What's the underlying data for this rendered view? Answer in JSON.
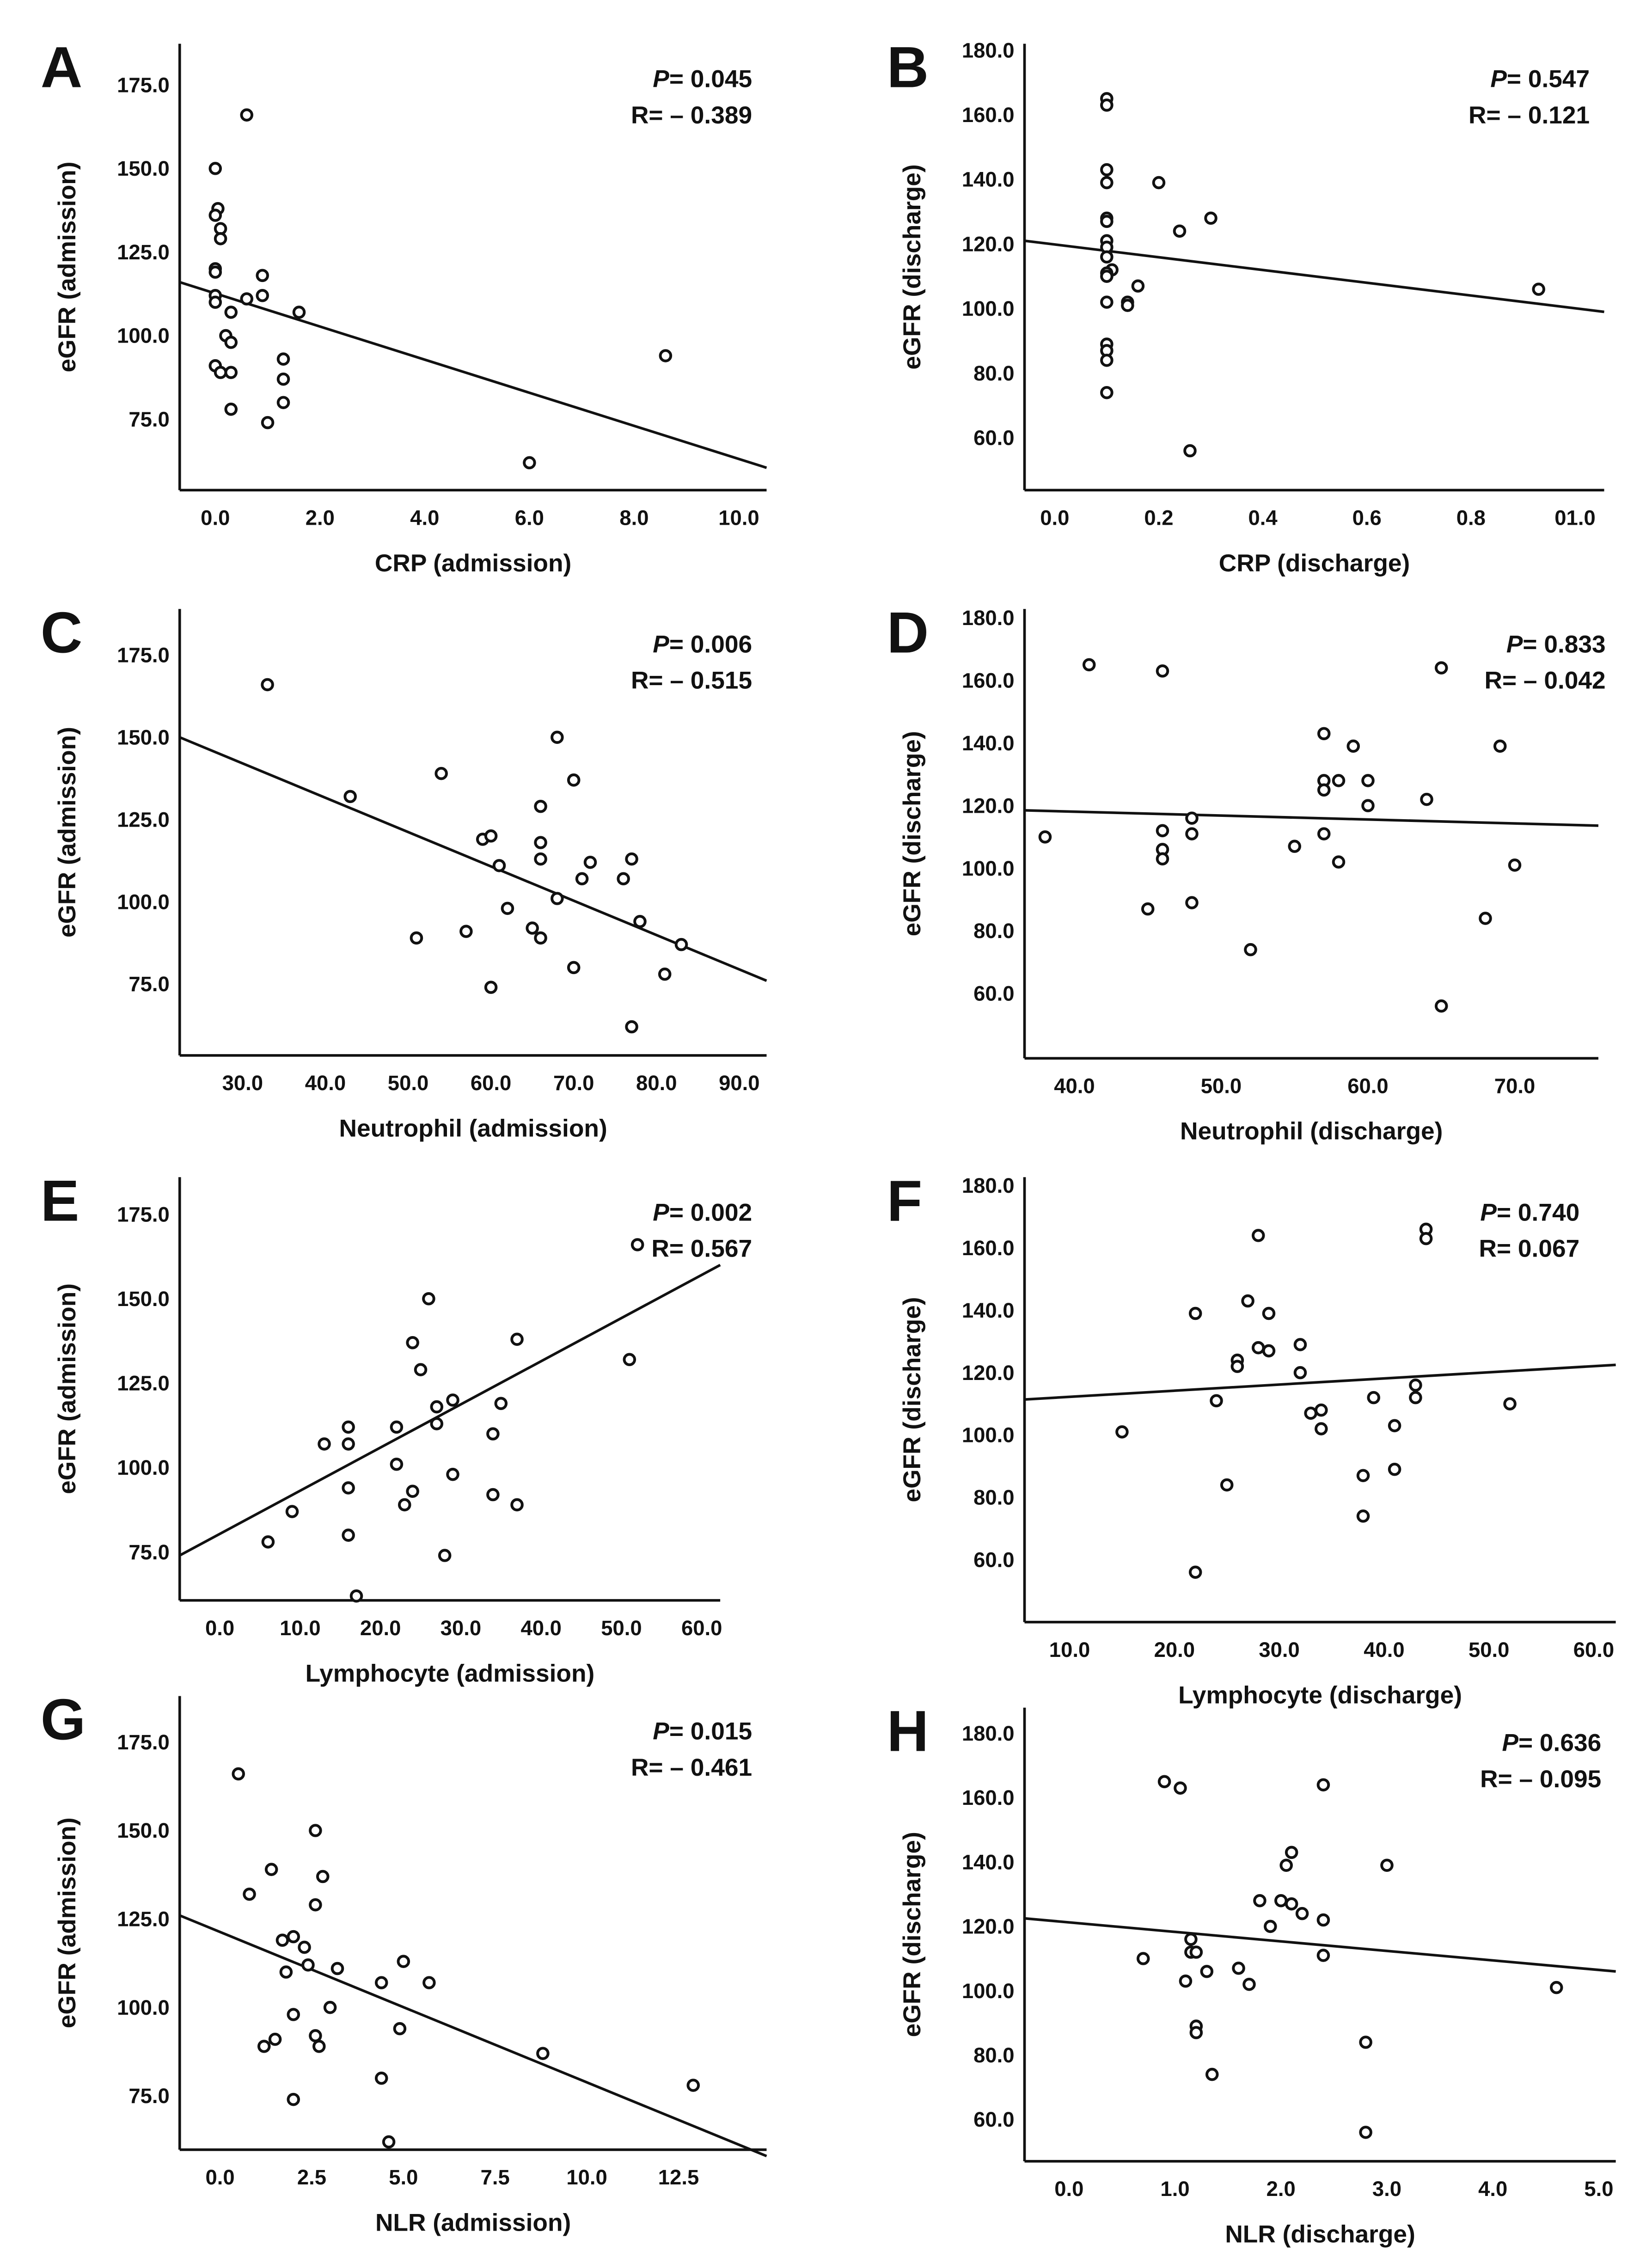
{
  "chart_data": [
    {
      "type": "scatter",
      "panel": "A",
      "xlabel": "CRP (admission)",
      "ylabel": "eGFR (admission)",
      "xlim": [
        -0.68,
        10.53
      ],
      "ylim": [
        53.8,
        187.3
      ],
      "xticks": [
        "0.0",
        "2.0",
        "4.0",
        "6.0",
        "8.0",
        "10.0"
      ],
      "yticks": [
        "75.0",
        "100.0",
        "125.0",
        "150.0",
        "175.0"
      ],
      "p_prefix": "P",
      "p_value": "= 0.045",
      "r_text": "R= – 0.389",
      "fit": {
        "x": [
          -0.68,
          10.53
        ],
        "y": [
          116,
          60.5
        ]
      },
      "points": [
        [
          0.6,
          166
        ],
        [
          0,
          150
        ],
        [
          0.05,
          138
        ],
        [
          0,
          136
        ],
        [
          0.1,
          132
        ],
        [
          0.1,
          129
        ],
        [
          0,
          120
        ],
        [
          0,
          119
        ],
        [
          0.9,
          118
        ],
        [
          0.9,
          112
        ],
        [
          0.6,
          111
        ],
        [
          0,
          112
        ],
        [
          0,
          110
        ],
        [
          0.3,
          107
        ],
        [
          1.6,
          107
        ],
        [
          0.2,
          100
        ],
        [
          0.3,
          98
        ],
        [
          1.3,
          93
        ],
        [
          0,
          91
        ],
        [
          0.1,
          89
        ],
        [
          0.3,
          89
        ],
        [
          1.3,
          87
        ],
        [
          1.3,
          80
        ],
        [
          0.3,
          78
        ],
        [
          1.0,
          74
        ],
        [
          6.0,
          62
        ],
        [
          8.6,
          94
        ]
      ]
    },
    {
      "type": "scatter",
      "panel": "B",
      "xlabel": "CRP (discharge)",
      "ylabel": "eGFR (discharge)",
      "xlim": [
        -0.058,
        1.056
      ],
      "ylim": [
        43.8,
        182
      ],
      "xticks": [
        "0.0",
        "0.2",
        "0.4",
        "0.6",
        "0.8",
        "01.0"
      ],
      "yticks": [
        "60.0",
        "80.0",
        "100.0",
        "120.0",
        "140.0",
        "160.0",
        "180.0"
      ],
      "p_prefix": "P",
      "p_value": "= 0.547",
      "r_text": "R= – 0.121",
      "fit": {
        "x": [
          -0.058,
          1.056
        ],
        "y": [
          121,
          99
        ]
      },
      "points": [
        [
          0.1,
          165
        ],
        [
          0.1,
          163
        ],
        [
          0.1,
          143
        ],
        [
          0.1,
          139
        ],
        [
          0.2,
          139
        ],
        [
          0.1,
          128
        ],
        [
          0.1,
          127
        ],
        [
          0.3,
          128
        ],
        [
          0.24,
          124
        ],
        [
          0.1,
          121
        ],
        [
          0.1,
          119
        ],
        [
          0.1,
          116
        ],
        [
          0.11,
          112
        ],
        [
          0.1,
          111
        ],
        [
          0.1,
          110
        ],
        [
          0.16,
          107
        ],
        [
          0.1,
          102
        ],
        [
          0.14,
          102
        ],
        [
          0.14,
          101
        ],
        [
          0.1,
          89
        ],
        [
          0.1,
          87
        ],
        [
          0.1,
          84
        ],
        [
          0.1,
          74
        ],
        [
          0.26,
          56
        ],
        [
          0.93,
          106
        ]
      ]
    },
    {
      "type": "scatter",
      "panel": "C",
      "xlabel": "Neutrophil (admission)",
      "ylabel": "eGFR (admission)",
      "xlim": [
        22.4,
        93.3
      ],
      "ylim": [
        53.3,
        189
      ],
      "xticks": [
        "30.0",
        "40.0",
        "50.0",
        "60.0",
        "70.0",
        "80.0",
        "90.0"
      ],
      "yticks": [
        "75.0",
        "100.0",
        "125.0",
        "150.0",
        "175.0"
      ],
      "p_prefix": "P",
      "p_value": "= 0.006",
      "r_text": "R= – 0.515",
      "fit": {
        "x": [
          22.4,
          93.3
        ],
        "y": [
          150,
          76
        ]
      },
      "points": [
        [
          33,
          166
        ],
        [
          43,
          132
        ],
        [
          54,
          139
        ],
        [
          68,
          150
        ],
        [
          70,
          137
        ],
        [
          66,
          129
        ],
        [
          59,
          119
        ],
        [
          60,
          120
        ],
        [
          61,
          111
        ],
        [
          66,
          118
        ],
        [
          66,
          113
        ],
        [
          72,
          112
        ],
        [
          77,
          113
        ],
        [
          71,
          107
        ],
        [
          76,
          107
        ],
        [
          68,
          101
        ],
        [
          62,
          98
        ],
        [
          57,
          91
        ],
        [
          51,
          89
        ],
        [
          65,
          92
        ],
        [
          66,
          89
        ],
        [
          78,
          94
        ],
        [
          83,
          87
        ],
        [
          70,
          80
        ],
        [
          81,
          78
        ],
        [
          60,
          74
        ],
        [
          77,
          62
        ]
      ]
    },
    {
      "type": "scatter",
      "panel": "D",
      "xlabel": "Neutrophil (discharge)",
      "ylabel": "eGFR (discharge)",
      "xlim": [
        36.6,
        75.7
      ],
      "ylim": [
        39.3,
        182.8
      ],
      "xticks": [
        "40.0",
        "50.0",
        "60.0",
        "70.0"
      ],
      "yticks": [
        "60.0",
        "80.0",
        "100.0",
        "120.0",
        "140.0",
        "160.0",
        "180.0"
      ],
      "p_prefix": "P",
      "p_value": "= 0.833",
      "r_text": "R= – 0.042",
      "fit": {
        "x": [
          36.6,
          75.7
        ],
        "y": [
          118.5,
          113.6
        ]
      },
      "points": [
        [
          41,
          165
        ],
        [
          46,
          163
        ],
        [
          65,
          164
        ],
        [
          57,
          143
        ],
        [
          59,
          139
        ],
        [
          69,
          139
        ],
        [
          57,
          128
        ],
        [
          58,
          128
        ],
        [
          60,
          128
        ],
        [
          64,
          122
        ],
        [
          60,
          120
        ],
        [
          57,
          125
        ],
        [
          48,
          116
        ],
        [
          46,
          112
        ],
        [
          48,
          111
        ],
        [
          57,
          111
        ],
        [
          38,
          110
        ],
        [
          46,
          106
        ],
        [
          46,
          103
        ],
        [
          55,
          107
        ],
        [
          58,
          102
        ],
        [
          70,
          101
        ],
        [
          45,
          87
        ],
        [
          48,
          89
        ],
        [
          68,
          84
        ],
        [
          52,
          74
        ],
        [
          65,
          56
        ]
      ]
    },
    {
      "type": "scatter",
      "panel": "E",
      "xlabel": "Lymphocyte (admission)",
      "ylabel": "eGFR (admission)",
      "xlim": [
        -5,
        62.3
      ],
      "ylim": [
        60.7,
        186
      ],
      "xticks": [
        "0.0",
        "10.0",
        "20.0",
        "30.0",
        "40.0",
        "50.0",
        "60.0"
      ],
      "yticks": [
        "75.0",
        "100.0",
        "125.0",
        "150.0",
        "175.0"
      ],
      "p_prefix": "P",
      "p_value": "= 0.002",
      "r_text": "R= 0.567",
      "fit": {
        "x": [
          -5,
          62.3
        ],
        "y": [
          74,
          160
        ]
      },
      "points": [
        [
          52,
          166
        ],
        [
          26,
          150
        ],
        [
          24,
          137
        ],
        [
          37,
          138
        ],
        [
          51,
          132
        ],
        [
          25,
          129
        ],
        [
          27,
          118
        ],
        [
          29,
          120
        ],
        [
          27,
          113
        ],
        [
          35,
          119
        ],
        [
          22,
          112
        ],
        [
          34,
          110
        ],
        [
          13,
          107
        ],
        [
          16,
          112
        ],
        [
          16,
          107
        ],
        [
          22,
          101
        ],
        [
          29,
          98
        ],
        [
          24,
          93
        ],
        [
          23,
          89
        ],
        [
          16,
          94
        ],
        [
          34,
          92
        ],
        [
          37,
          89
        ],
        [
          9,
          87
        ],
        [
          16,
          80
        ],
        [
          6,
          78
        ],
        [
          28,
          74
        ],
        [
          17,
          62
        ]
      ]
    },
    {
      "type": "scatter",
      "panel": "F",
      "xlabel": "Lymphocyte (discharge)",
      "ylabel": "eGFR (discharge)",
      "xlim": [
        5.7,
        62.1
      ],
      "ylim": [
        40,
        182.7
      ],
      "xticks": [
        "10.0",
        "20.0",
        "30.0",
        "40.0",
        "50.0",
        "60.0"
      ],
      "yticks": [
        "60.0",
        "80.0",
        "100.0",
        "120.0",
        "140.0",
        "160.0",
        "180.0"
      ],
      "p_prefix": "P",
      "p_value": "= 0.740",
      "r_text": "R= 0.067",
      "fit": {
        "x": [
          5.7,
          62.1
        ],
        "y": [
          111.4,
          122.5
        ]
      },
      "points": [
        [
          28,
          164
        ],
        [
          44,
          166
        ],
        [
          44,
          163
        ],
        [
          27,
          143
        ],
        [
          29,
          139
        ],
        [
          22,
          139
        ],
        [
          32,
          129
        ],
        [
          28,
          128
        ],
        [
          29,
          127
        ],
        [
          26,
          124
        ],
        [
          26,
          122
        ],
        [
          32,
          120
        ],
        [
          43,
          116
        ],
        [
          43,
          112
        ],
        [
          39,
          112
        ],
        [
          24,
          111
        ],
        [
          52,
          110
        ],
        [
          33,
          107
        ],
        [
          34,
          108
        ],
        [
          34,
          102
        ],
        [
          41,
          103
        ],
        [
          15,
          101
        ],
        [
          41,
          89
        ],
        [
          38,
          87
        ],
        [
          25,
          84
        ],
        [
          38,
          74
        ],
        [
          22,
          56
        ]
      ]
    },
    {
      "type": "scatter",
      "panel": "G",
      "xlabel": "NLR (admission)",
      "ylabel": "eGFR (admission)",
      "xlim": [
        -1.1,
        14.9
      ],
      "ylim": [
        59.8,
        188
      ],
      "xticks": [
        "0.0",
        "2.5",
        "5.0",
        "7.5",
        "10.0",
        "12.5"
      ],
      "yticks": [
        "75.0",
        "100.0",
        "125.0",
        "150.0",
        "175.0"
      ],
      "p_prefix": "P",
      "p_value": "= 0.015",
      "r_text": "R= – 0.461",
      "fit": {
        "x": [
          -1.1,
          14.9
        ],
        "y": [
          126,
          58
        ]
      },
      "points": [
        [
          0.5,
          166
        ],
        [
          1.4,
          139
        ],
        [
          0.8,
          132
        ],
        [
          2.6,
          150
        ],
        [
          2.8,
          137
        ],
        [
          2.6,
          129
        ],
        [
          1.7,
          119
        ],
        [
          2,
          120
        ],
        [
          2.3,
          117
        ],
        [
          1.8,
          110
        ],
        [
          2.4,
          112
        ],
        [
          3.2,
          111
        ],
        [
          5,
          113
        ],
        [
          5.7,
          107
        ],
        [
          4.4,
          107
        ],
        [
          3,
          100
        ],
        [
          2,
          98
        ],
        [
          1.2,
          89
        ],
        [
          1.5,
          91
        ],
        [
          2.6,
          92
        ],
        [
          2.7,
          89
        ],
        [
          4.9,
          94
        ],
        [
          4.4,
          80
        ],
        [
          8.8,
          87
        ],
        [
          12.9,
          78
        ],
        [
          2,
          74
        ],
        [
          4.6,
          62
        ]
      ]
    },
    {
      "type": "scatter",
      "panel": "H",
      "xlabel": "NLR (discharge)",
      "ylabel": "eGFR (discharge)",
      "xlim": [
        -0.42,
        5.16
      ],
      "ylim": [
        47,
        188
      ],
      "xticks": [
        "0.0",
        "1.0",
        "2.0",
        "3.0",
        "4.0",
        "5.0"
      ],
      "yticks": [
        "60.0",
        "80.0",
        "100.0",
        "120.0",
        "140.0",
        "160.0",
        "180.0"
      ],
      "p_prefix": "P",
      "p_value": "= 0.636",
      "r_text": "R= – 0.095",
      "fit": {
        "x": [
          -0.42,
          5.16
        ],
        "y": [
          122.5,
          106
        ]
      },
      "points": [
        [
          0.9,
          165
        ],
        [
          1.05,
          163
        ],
        [
          2.4,
          164
        ],
        [
          2.1,
          143
        ],
        [
          2.05,
          139
        ],
        [
          3,
          139
        ],
        [
          1.8,
          128
        ],
        [
          2,
          128
        ],
        [
          2.1,
          127
        ],
        [
          2.2,
          124
        ],
        [
          2.4,
          122
        ],
        [
          1.9,
          120
        ],
        [
          1.15,
          116
        ],
        [
          1.15,
          112
        ],
        [
          1.2,
          112
        ],
        [
          2.4,
          111
        ],
        [
          0.7,
          110
        ],
        [
          1.3,
          106
        ],
        [
          1.6,
          107
        ],
        [
          1.1,
          103
        ],
        [
          1.7,
          102
        ],
        [
          4.6,
          101
        ],
        [
          1.2,
          89
        ],
        [
          1.2,
          87
        ],
        [
          2.8,
          84
        ],
        [
          1.35,
          74
        ],
        [
          2.8,
          56
        ]
      ]
    }
  ]
}
